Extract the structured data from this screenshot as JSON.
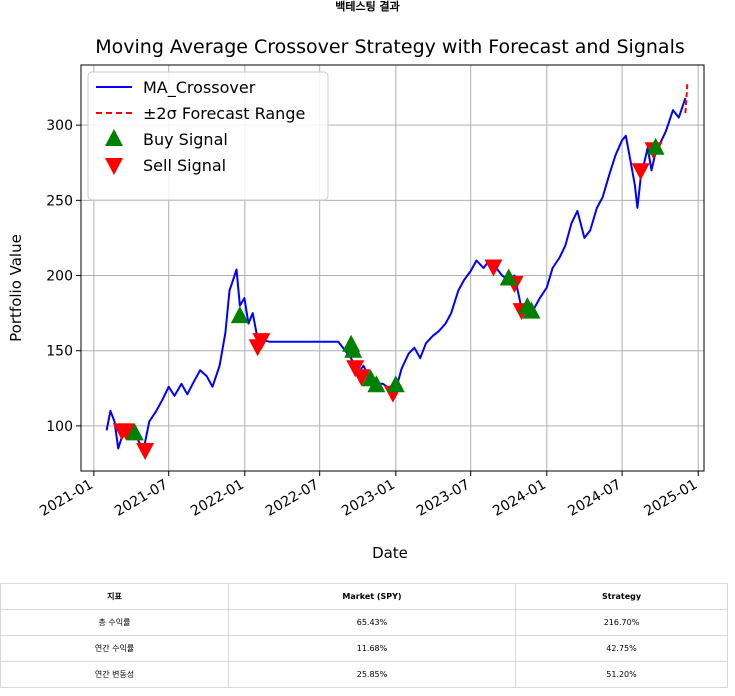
{
  "page": {
    "heading": "백테스팅 결과"
  },
  "chart_data": {
    "type": "line",
    "title": "Moving Average Crossover Strategy with Forecast and Signals",
    "xlabel": "Date",
    "ylabel": "Portfolio Value",
    "x_ticks": [
      "2021-01",
      "2021-07",
      "2022-01",
      "2022-07",
      "2023-01",
      "2023-07",
      "2024-01",
      "2024-07",
      "2025-01"
    ],
    "y_ticks": [
      100,
      150,
      200,
      250,
      300
    ],
    "xlim": [
      "2020-12-01",
      "2025-01-15"
    ],
    "ylim": [
      70,
      340
    ],
    "grid": true,
    "legend_position": "upper-left",
    "legend": [
      {
        "label": "MA_Crossover",
        "style": "line",
        "color": "#0000ff"
      },
      {
        "label": "±2σ Forecast Range",
        "style": "dashed",
        "color": "#ff0000"
      },
      {
        "label": "Buy Signal",
        "style": "triangle-up",
        "color": "#008000"
      },
      {
        "label": "Sell Signal",
        "style": "triangle-down",
        "color": "#ff0000"
      }
    ],
    "series": [
      {
        "name": "MA_Crossover",
        "color": "#0000ff",
        "points": [
          [
            "2021-02-01",
            97
          ],
          [
            "2021-02-10",
            110
          ],
          [
            "2021-02-20",
            103
          ],
          [
            "2021-03-01",
            85
          ],
          [
            "2021-03-15",
            97
          ],
          [
            "2021-04-01",
            100
          ],
          [
            "2021-04-15",
            92
          ],
          [
            "2021-05-01",
            84
          ],
          [
            "2021-05-15",
            103
          ],
          [
            "2021-06-01",
            110
          ],
          [
            "2021-06-15",
            117
          ],
          [
            "2021-07-01",
            126
          ],
          [
            "2021-07-15",
            120
          ],
          [
            "2021-08-01",
            128
          ],
          [
            "2021-08-15",
            121
          ],
          [
            "2021-09-01",
            130
          ],
          [
            "2021-09-15",
            137
          ],
          [
            "2021-10-01",
            133
          ],
          [
            "2021-10-15",
            126
          ],
          [
            "2021-11-01",
            140
          ],
          [
            "2021-11-15",
            162
          ],
          [
            "2021-11-25",
            190
          ],
          [
            "2021-12-05",
            198
          ],
          [
            "2021-12-12",
            204
          ],
          [
            "2021-12-20",
            180
          ],
          [
            "2021-12-31",
            185
          ],
          [
            "2022-01-10",
            168
          ],
          [
            "2022-01-20",
            175
          ],
          [
            "2022-02-01",
            158
          ],
          [
            "2022-02-15",
            157
          ],
          [
            "2022-03-01",
            156
          ],
          [
            "2022-08-15",
            156
          ],
          [
            "2022-09-01",
            150
          ],
          [
            "2022-09-15",
            145
          ],
          [
            "2022-10-01",
            135
          ],
          [
            "2022-10-15",
            140
          ],
          [
            "2022-11-01",
            130
          ],
          [
            "2022-11-15",
            128
          ],
          [
            "2022-12-01",
            128
          ],
          [
            "2022-12-15",
            125
          ],
          [
            "2023-01-01",
            124
          ],
          [
            "2023-01-15",
            138
          ],
          [
            "2023-02-01",
            148
          ],
          [
            "2023-02-15",
            152
          ],
          [
            "2023-03-01",
            145
          ],
          [
            "2023-03-15",
            155
          ],
          [
            "2023-04-01",
            160
          ],
          [
            "2023-04-15",
            163
          ],
          [
            "2023-05-01",
            168
          ],
          [
            "2023-05-15",
            175
          ],
          [
            "2023-06-01",
            190
          ],
          [
            "2023-06-15",
            197
          ],
          [
            "2023-07-01",
            203
          ],
          [
            "2023-07-15",
            210
          ],
          [
            "2023-08-01",
            205
          ],
          [
            "2023-08-15",
            210
          ],
          [
            "2023-09-01",
            205
          ],
          [
            "2023-09-15",
            200
          ],
          [
            "2023-10-01",
            197
          ],
          [
            "2023-10-15",
            200
          ],
          [
            "2023-11-01",
            178
          ],
          [
            "2023-11-15",
            183
          ],
          [
            "2023-12-01",
            178
          ],
          [
            "2023-12-15",
            185
          ],
          [
            "2024-01-01",
            192
          ],
          [
            "2024-01-15",
            205
          ],
          [
            "2024-02-01",
            212
          ],
          [
            "2024-02-15",
            220
          ],
          [
            "2024-03-01",
            235
          ],
          [
            "2024-03-15",
            243
          ],
          [
            "2024-04-01",
            225
          ],
          [
            "2024-04-15",
            230
          ],
          [
            "2024-05-01",
            245
          ],
          [
            "2024-05-15",
            252
          ],
          [
            "2024-06-01",
            268
          ],
          [
            "2024-06-15",
            280
          ],
          [
            "2024-07-01",
            290
          ],
          [
            "2024-07-10",
            293
          ],
          [
            "2024-07-20",
            278
          ],
          [
            "2024-08-01",
            260
          ],
          [
            "2024-08-07",
            245
          ],
          [
            "2024-08-15",
            265
          ],
          [
            "2024-09-01",
            285
          ],
          [
            "2024-09-10",
            270
          ],
          [
            "2024-09-20",
            282
          ],
          [
            "2024-10-01",
            288
          ],
          [
            "2024-10-15",
            296
          ],
          [
            "2024-11-01",
            310
          ],
          [
            "2024-11-15",
            305
          ],
          [
            "2024-12-01",
            318
          ]
        ]
      },
      {
        "name": "±2σ Forecast Range",
        "color": "#ff0000",
        "points": [
          [
            "2024-12-01",
            308
          ],
          [
            "2024-12-06",
            329
          ]
        ]
      }
    ],
    "buy_signals": [
      [
        "2021-04-10",
        95
      ],
      [
        "2021-12-20",
        173
      ],
      [
        "2022-09-15",
        154
      ],
      [
        "2022-09-20",
        150
      ],
      [
        "2022-11-01",
        131
      ],
      [
        "2022-11-15",
        127
      ],
      [
        "2023-01-01",
        127
      ],
      [
        "2023-10-01",
        198
      ],
      [
        "2023-11-15",
        179
      ],
      [
        "2023-11-25",
        176
      ],
      [
        "2024-09-20",
        285
      ]
    ],
    "sell_signals": [
      [
        "2021-03-10",
        97
      ],
      [
        "2021-03-20",
        97
      ],
      [
        "2021-05-05",
        84
      ],
      [
        "2022-02-01",
        153
      ],
      [
        "2022-02-10",
        157
      ],
      [
        "2022-09-25",
        139
      ],
      [
        "2022-10-10",
        133
      ],
      [
        "2022-12-25",
        122
      ],
      [
        "2023-08-25",
        206
      ],
      [
        "2023-10-15",
        195
      ],
      [
        "2023-11-01",
        177
      ],
      [
        "2024-08-15",
        270
      ],
      [
        "2024-09-15",
        284
      ]
    ]
  },
  "table": {
    "headers": [
      "지표",
      "Market (SPY)",
      "Strategy"
    ],
    "rows": [
      [
        "총 수익률",
        "65.43%",
        "216.70%"
      ],
      [
        "연간 수익률",
        "11.68%",
        "42.75%"
      ],
      [
        "연간 변동성",
        "25.85%",
        "51.20%"
      ]
    ]
  }
}
